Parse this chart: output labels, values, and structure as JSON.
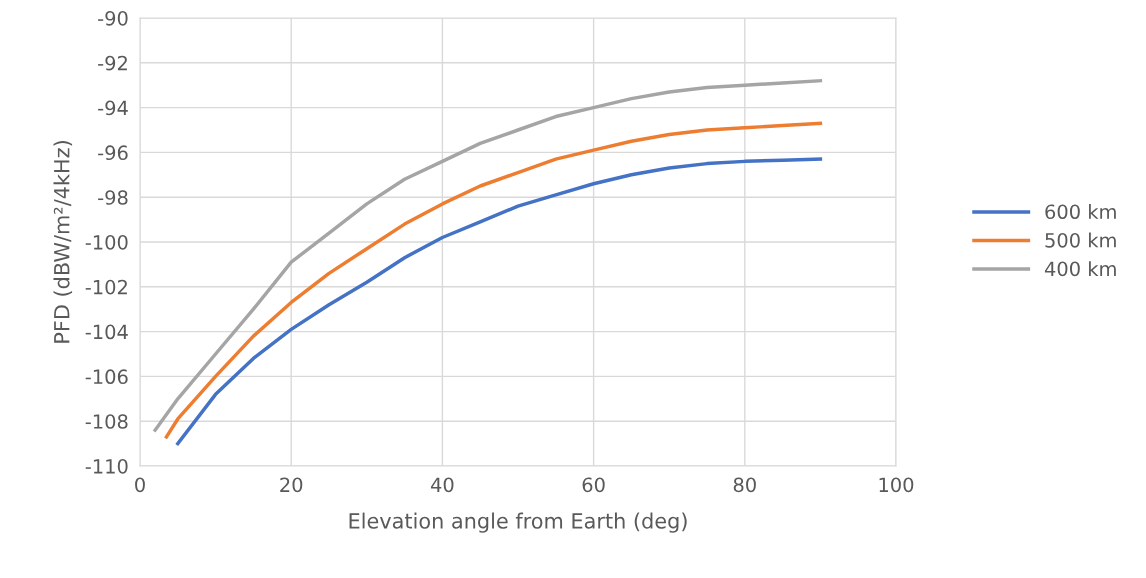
{
  "chart_data": {
    "type": "line",
    "xlabel": "Elevation angle from Earth (deg)",
    "ylabel": "PFD (dBW/m²/4kHz)",
    "xlim": [
      0,
      100
    ],
    "xticks": [
      0,
      20,
      40,
      60,
      80,
      100
    ],
    "ylim": [
      -110,
      -90
    ],
    "yticks": [
      -110,
      -108,
      -106,
      -104,
      -102,
      -100,
      -98,
      -96,
      -94,
      -92,
      -90
    ],
    "grid": true,
    "legend": "right",
    "line_style": "solid",
    "marker": "none",
    "series": [
      {
        "name": "600 km",
        "color": "#4472c4",
        "x": [
          5,
          10,
          15,
          20,
          25,
          30,
          35,
          40,
          45,
          50,
          55,
          60,
          65,
          70,
          75,
          80,
          85,
          90
        ],
        "values": [
          -109.0,
          -106.8,
          -105.2,
          -103.9,
          -102.8,
          -101.8,
          -100.7,
          -99.8,
          -99.1,
          -98.4,
          -97.9,
          -97.4,
          -97.0,
          -96.7,
          -96.5,
          -96.4,
          -96.35,
          -96.3
        ]
      },
      {
        "name": "500 km",
        "color": "#ed7d31",
        "x": [
          3.5,
          5,
          10,
          15,
          20,
          25,
          30,
          35,
          40,
          45,
          50,
          55,
          60,
          65,
          70,
          75,
          80,
          85,
          90
        ],
        "values": [
          -108.7,
          -107.9,
          -106.0,
          -104.2,
          -102.7,
          -101.4,
          -100.3,
          -99.2,
          -98.3,
          -97.5,
          -96.9,
          -96.3,
          -95.9,
          -95.5,
          -95.2,
          -95.0,
          -94.9,
          -94.8,
          -94.7
        ]
      },
      {
        "name": "400 km",
        "color": "#a5a5a5",
        "x": [
          2,
          5,
          10,
          15,
          20,
          25,
          30,
          35,
          40,
          45,
          50,
          55,
          60,
          65,
          70,
          75,
          80,
          85,
          90
        ],
        "values": [
          -108.4,
          -107.0,
          -105.0,
          -103.0,
          -100.9,
          -99.6,
          -98.3,
          -97.2,
          -96.4,
          -95.6,
          -95.0,
          -94.4,
          -94.0,
          -93.6,
          -93.3,
          -93.1,
          -93.0,
          -92.9,
          -92.8
        ]
      }
    ]
  }
}
